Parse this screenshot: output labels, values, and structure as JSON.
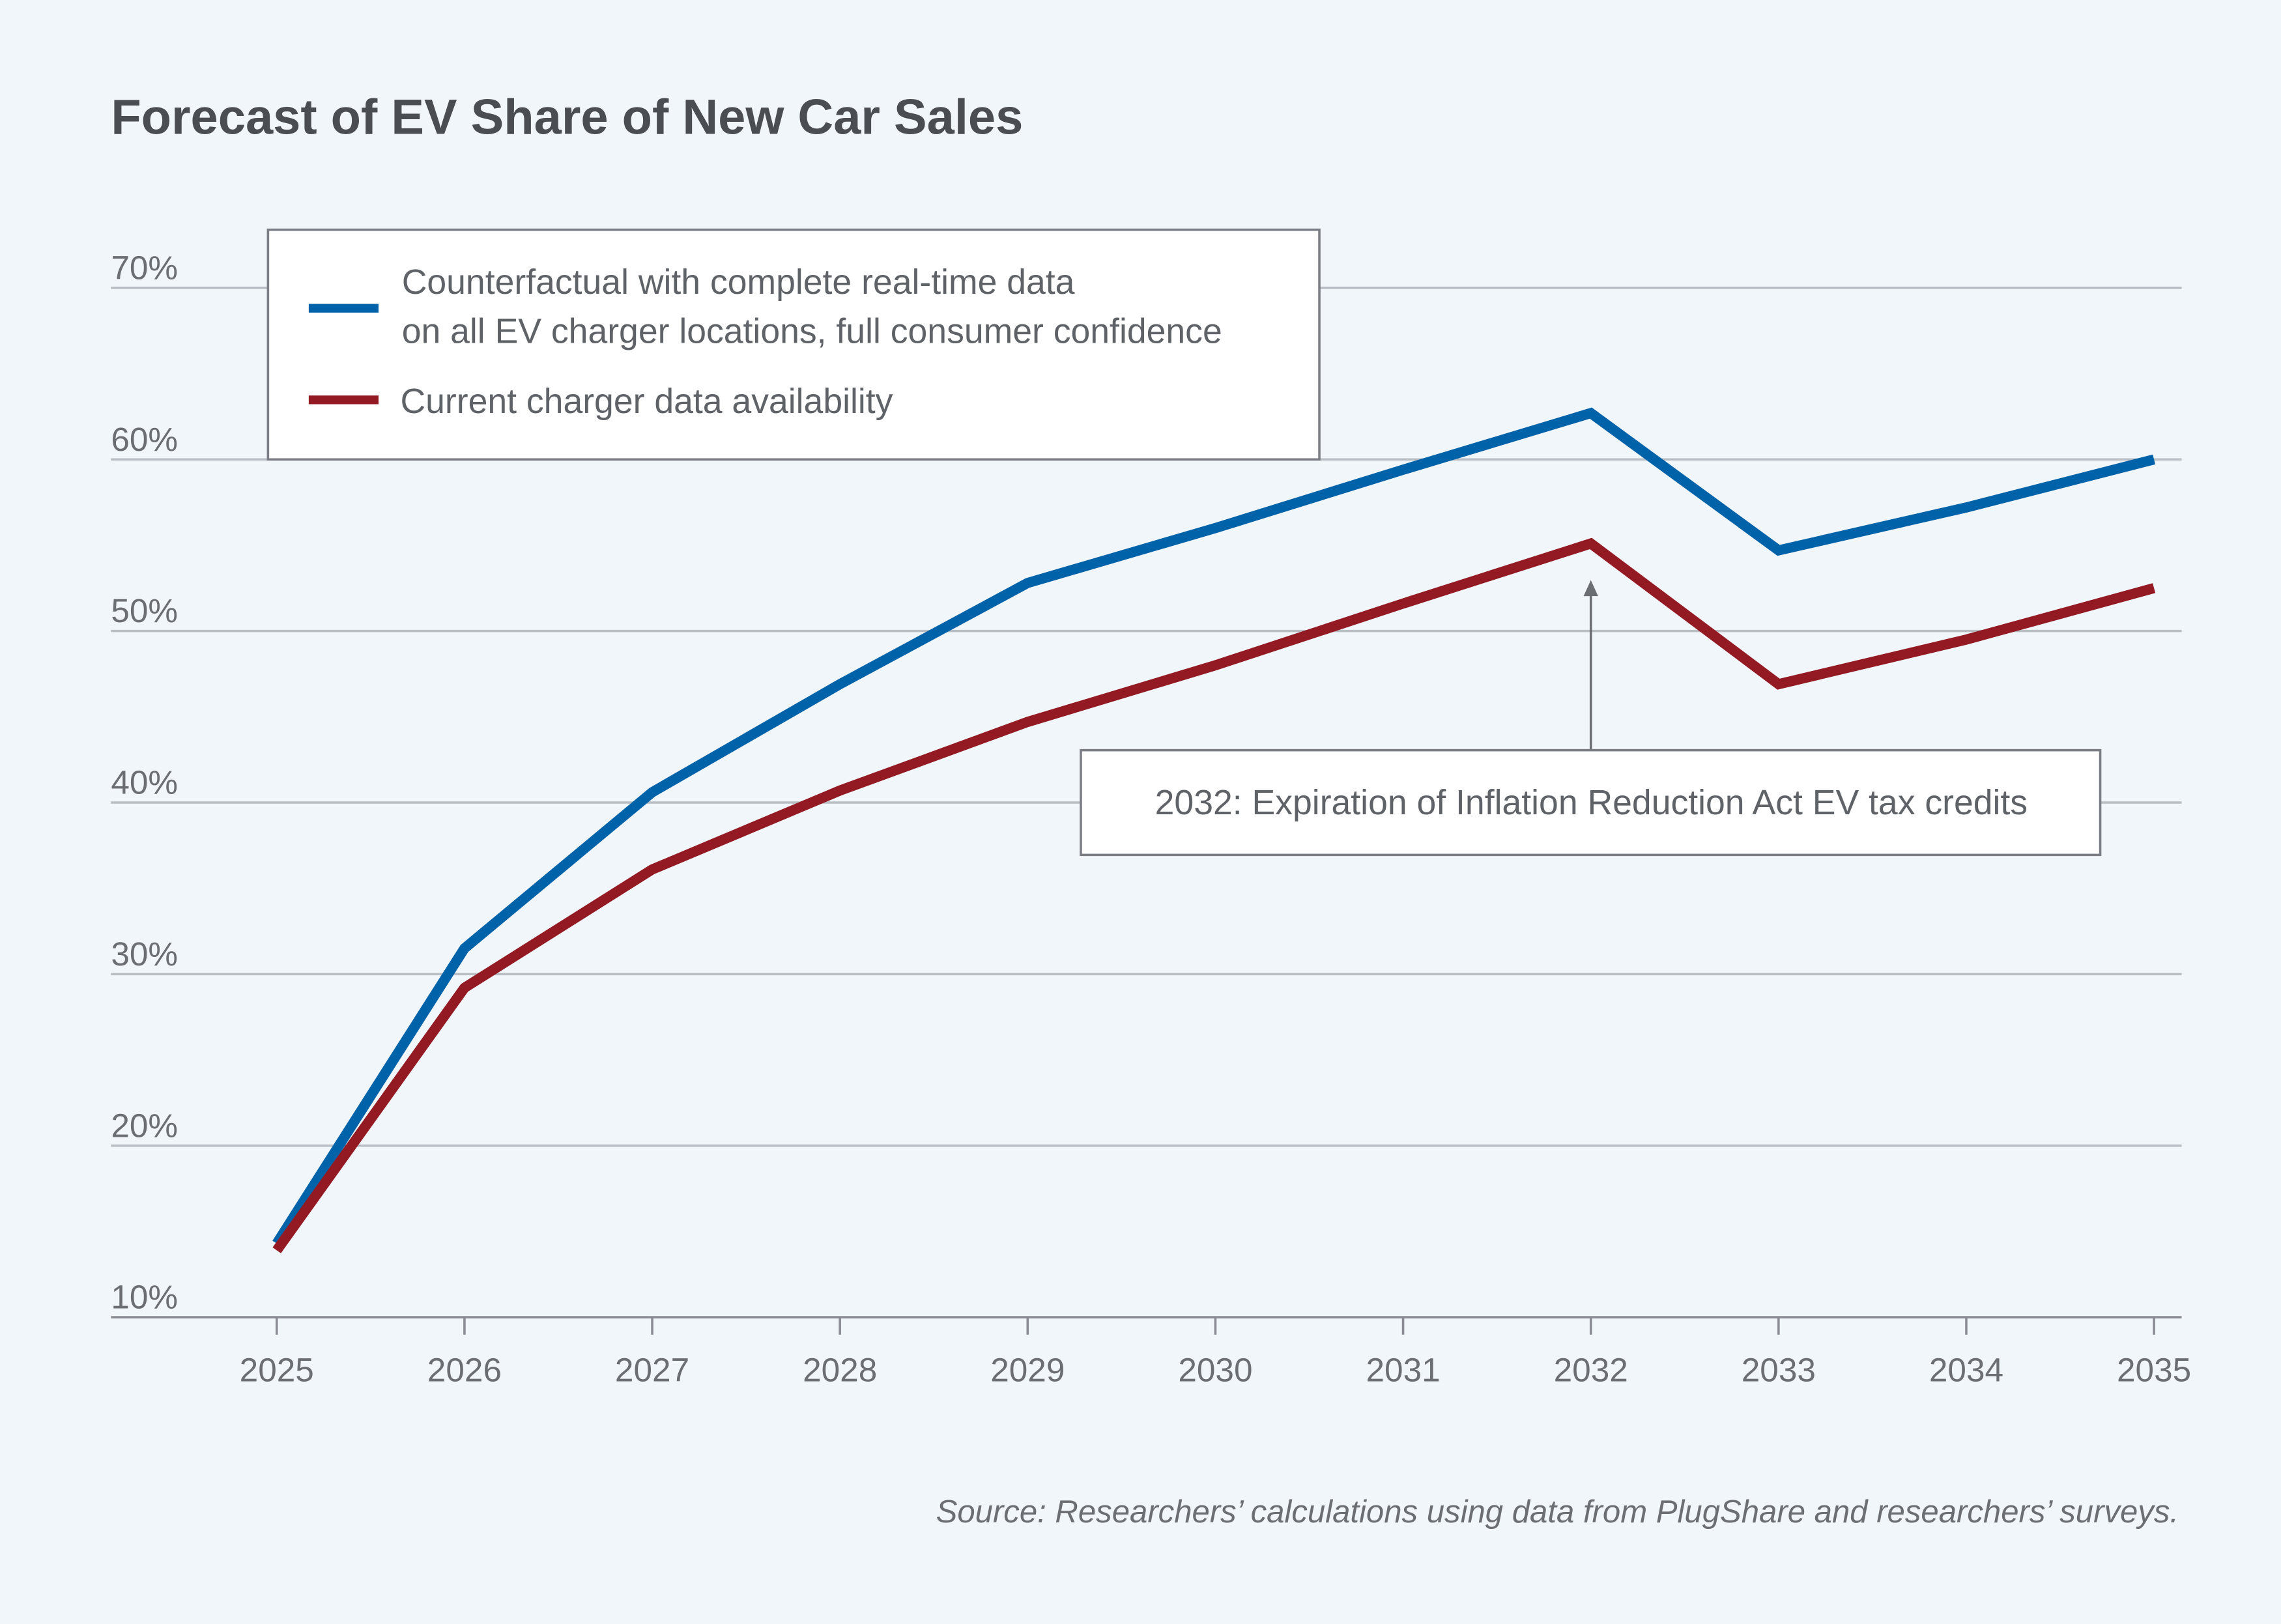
{
  "chart_data": {
    "type": "line",
    "title": "Forecast of EV Share of New Car Sales",
    "xlabel": "",
    "ylabel": "",
    "x": [
      2025,
      2026,
      2027,
      2028,
      2029,
      2030,
      2031,
      2032,
      2033,
      2034,
      2035
    ],
    "x_tick_labels": [
      "2025",
      "2026",
      "2027",
      "2028",
      "2029",
      "2030",
      "2031",
      "2032",
      "2033",
      "2034",
      "2035"
    ],
    "y_ticks": [
      10,
      20,
      30,
      40,
      50,
      60,
      70
    ],
    "y_tick_labels": [
      "10%",
      "20%",
      "30%",
      "40%",
      "50%",
      "60%",
      "70%"
    ],
    "ylim": [
      10,
      70
    ],
    "grid": "horizontal",
    "legend_placement": "top-left",
    "series": [
      {
        "name_lines": [
          "Counterfactual with complete real-time data",
          "on all EV charger locations, full consumer confidence"
        ],
        "color": "#0062a8",
        "values": [
          14.3,
          31.5,
          40.6,
          46.9,
          52.8,
          56.0,
          59.4,
          62.7,
          54.7,
          57.2,
          60.0
        ]
      },
      {
        "name_lines": [
          "Current charger data availability"
        ],
        "color": "#931a22",
        "values": [
          13.9,
          29.2,
          36.1,
          40.7,
          44.7,
          48.0,
          51.6,
          55.1,
          46.9,
          49.5,
          52.5
        ]
      }
    ],
    "annotation": {
      "text": "2032: Expiration of Inflation Reduction Act EV tax credits",
      "x": 2032
    },
    "source": "Source: Researchers’ calculations using data from PlugShare and researchers’ surveys."
  }
}
